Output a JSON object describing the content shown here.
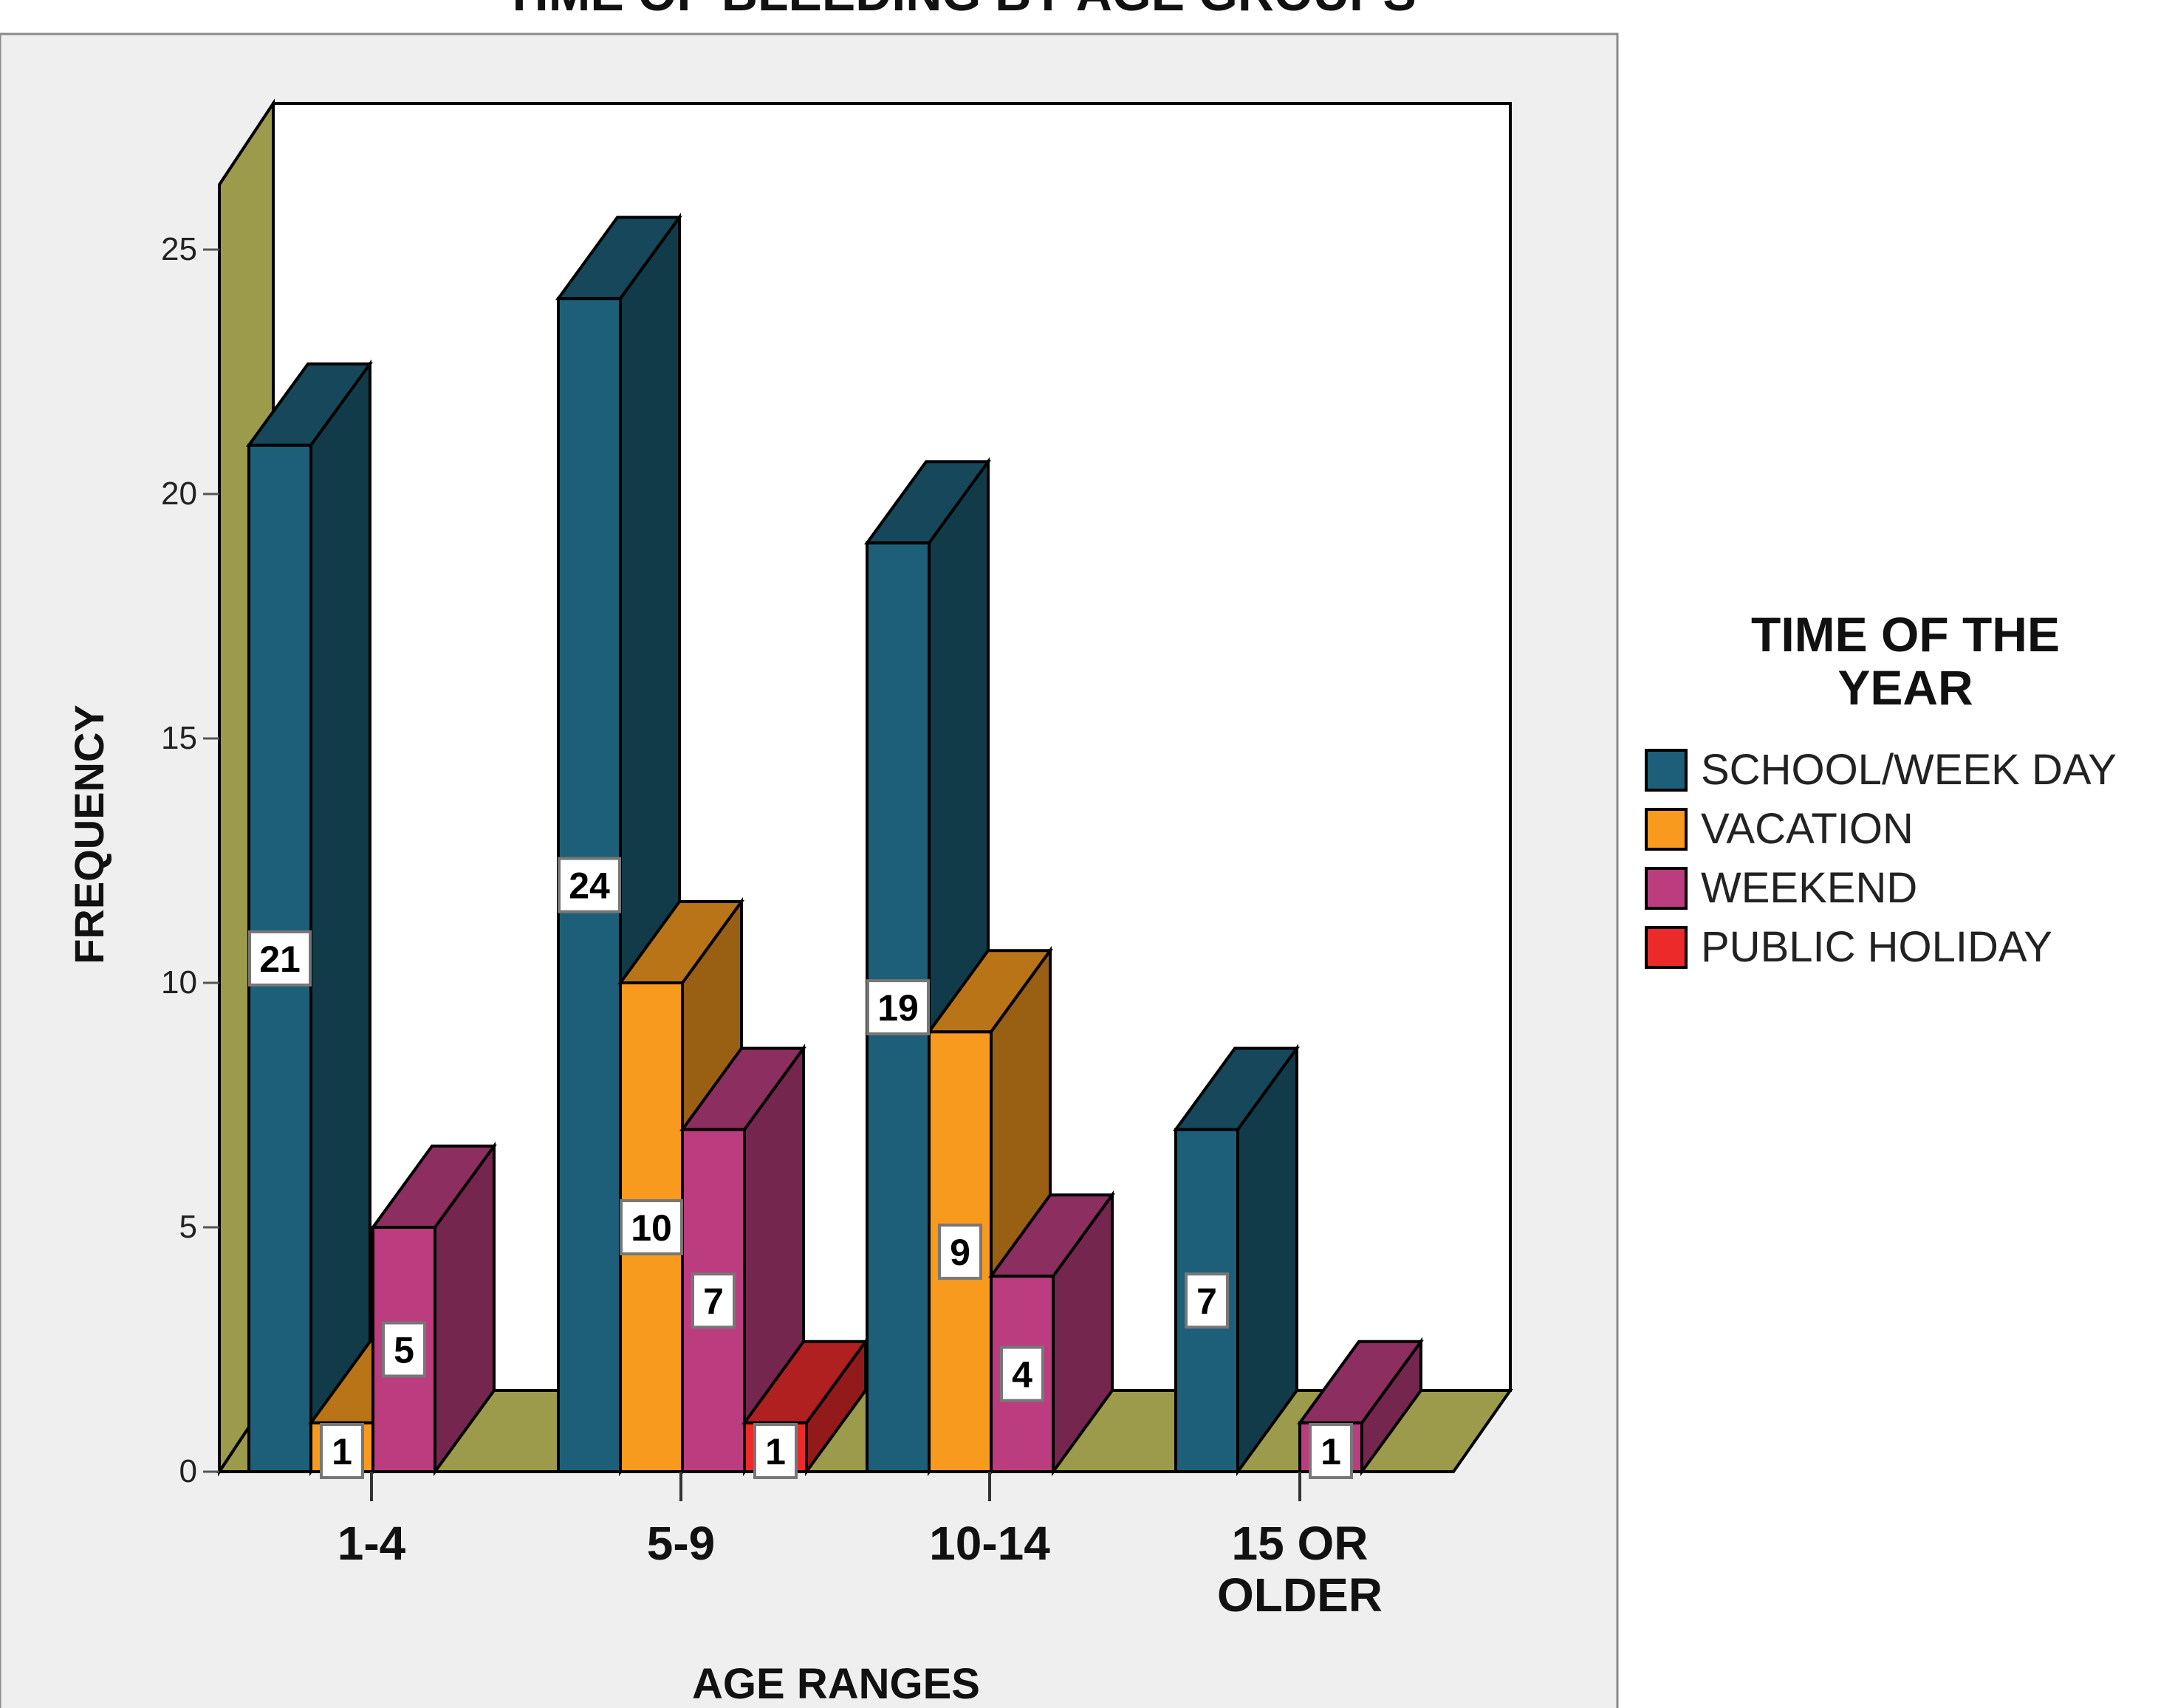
{
  "chart_data": {
    "type": "bar",
    "title": "TIME OF BLEEDING BY AGE GROUPS",
    "xlabel": "AGE RANGES",
    "ylabel": "FREQUENCY",
    "ylim": [
      0,
      25
    ],
    "yticks": [
      0,
      5,
      10,
      15,
      20,
      25
    ],
    "categories": [
      {
        "lines": [
          "1-4"
        ]
      },
      {
        "lines": [
          "5-9"
        ]
      },
      {
        "lines": [
          "10-14"
        ]
      },
      {
        "lines": [
          "15 OR",
          "OLDER"
        ]
      }
    ],
    "series": [
      {
        "name": "SCHOOL/WEEK DAY",
        "color": "#1d5f78",
        "values": [
          21,
          24,
          19,
          7
        ]
      },
      {
        "name": "VACATION",
        "color": "#f79a1e",
        "values": [
          1,
          10,
          9,
          0
        ]
      },
      {
        "name": "WEEKEND",
        "color": "#bb3d80",
        "values": [
          5,
          7,
          4,
          1
        ]
      },
      {
        "name": "PUBLIC HOLIDAY",
        "color": "#ec2a2a",
        "values": [
          0,
          1,
          0,
          0
        ]
      }
    ],
    "legend": {
      "title_lines": [
        "TIME OF THE",
        "YEAR"
      ],
      "position": "right"
    },
    "colors": {
      "page_background": "#ffffff",
      "chart_background": "#efefef",
      "plot_background": "#ffffff",
      "wall_floor": "#9c9a4b"
    },
    "style": "3d-clustered-bar",
    "data_labels": true,
    "grid": false
  }
}
